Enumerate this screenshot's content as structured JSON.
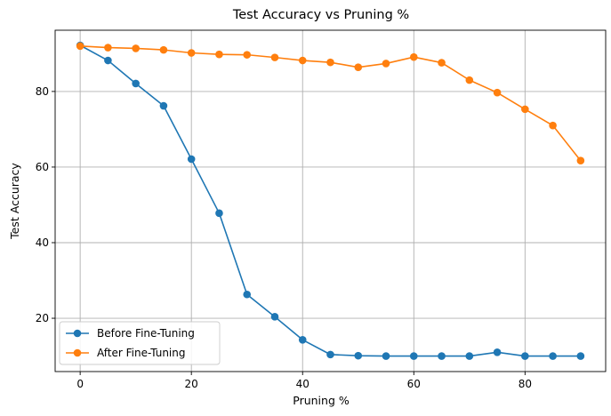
{
  "chart_data": {
    "type": "line",
    "title": "Test Accuracy vs Pruning %",
    "xlabel": "Pruning %",
    "ylabel": "Test Accuracy",
    "x": [
      0,
      5,
      10,
      15,
      20,
      25,
      30,
      35,
      40,
      45,
      50,
      55,
      60,
      65,
      70,
      75,
      80,
      85,
      90
    ],
    "xlim": [
      -4.5,
      94.5
    ],
    "ylim": [
      5.9,
      96.2
    ],
    "xticks": [
      0,
      20,
      40,
      60,
      80
    ],
    "yticks": [
      20,
      40,
      60,
      80
    ],
    "grid": true,
    "legend_position": "lower-left",
    "series": [
      {
        "name": "Before Fine-Tuning",
        "color": "#1f77b4",
        "values": [
          92.2,
          88.2,
          82.1,
          76.2,
          62.1,
          47.8,
          26.3,
          20.4,
          14.3,
          10.4,
          10.1,
          10.0,
          10.0,
          10.0,
          10.0,
          11.0,
          10.0,
          10.0,
          10.0
        ]
      },
      {
        "name": "After Fine-Tuning",
        "color": "#ff7f0e",
        "values": [
          92.0,
          91.6,
          91.4,
          91.0,
          90.2,
          89.8,
          89.7,
          89.0,
          88.2,
          87.7,
          86.4,
          87.4,
          89.1,
          87.6,
          83.0,
          79.7,
          75.3,
          71.0,
          61.7
        ]
      }
    ]
  }
}
